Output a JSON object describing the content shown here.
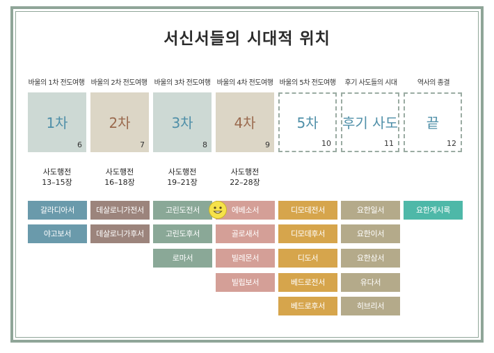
{
  "title": "서신서들의 시대적 위치",
  "columns": [
    {
      "label": "바울의 1차 전도여행",
      "box": "1차",
      "num": "6",
      "sub1": "사도행전",
      "sub2": "13–15장"
    },
    {
      "label": "바울의 2차 전도여행",
      "box": "2차",
      "num": "7",
      "sub1": "사도행전",
      "sub2": "16–18장"
    },
    {
      "label": "바울의 3차 전도여행",
      "box": "3차",
      "num": "8",
      "sub1": "사도행전",
      "sub2": "19–21장"
    },
    {
      "label": "바울의 4차 전도여행",
      "box": "4차",
      "num": "9",
      "sub1": "사도행전",
      "sub2": "22–28장"
    },
    {
      "label": "바울의 5차 전도여행",
      "box": "5차",
      "num": "10"
    },
    {
      "label": "후기 사도들의 시대",
      "box": "후기 사도",
      "num": "11"
    },
    {
      "label": "역사의 종결",
      "box": "끝",
      "num": "12"
    }
  ],
  "books": {
    "col1": [
      "갈라디아서",
      "야고보서"
    ],
    "col2": [
      "데살로니가전서",
      "데살로니가후서"
    ],
    "col3": [
      "고린도전서",
      "고린도후서",
      "로마서"
    ],
    "col4": [
      "에베소서",
      "골로새서",
      "빌레몬서",
      "빌립보서"
    ],
    "col5": [
      "디모데전서",
      "디모데후서",
      "디도서",
      "베드로전서",
      "베드로후서"
    ],
    "col6": [
      "요한일서",
      "요한이서",
      "요한삼서",
      "유다서",
      "히브리서"
    ],
    "col7": [
      "요한계시록"
    ]
  },
  "colors": {
    "col1": "#6a9aab",
    "col2": "#9c847c",
    "col3": "#8aa897",
    "col4": "#d49f97",
    "col5": "#d6a54c",
    "col6": "#b4aa8a",
    "col7": "#4eb8a8",
    "box1_bg": "#cdd9d4",
    "box2_bg": "#dcd6c6",
    "box3_bg": "#cdd9d4",
    "box4_bg": "#dcd6c6",
    "box_text_blue": "#4f8fa8",
    "box_text_brown": "#9a6a4e"
  },
  "icons": {
    "smiley": "smiley-face-icon"
  }
}
